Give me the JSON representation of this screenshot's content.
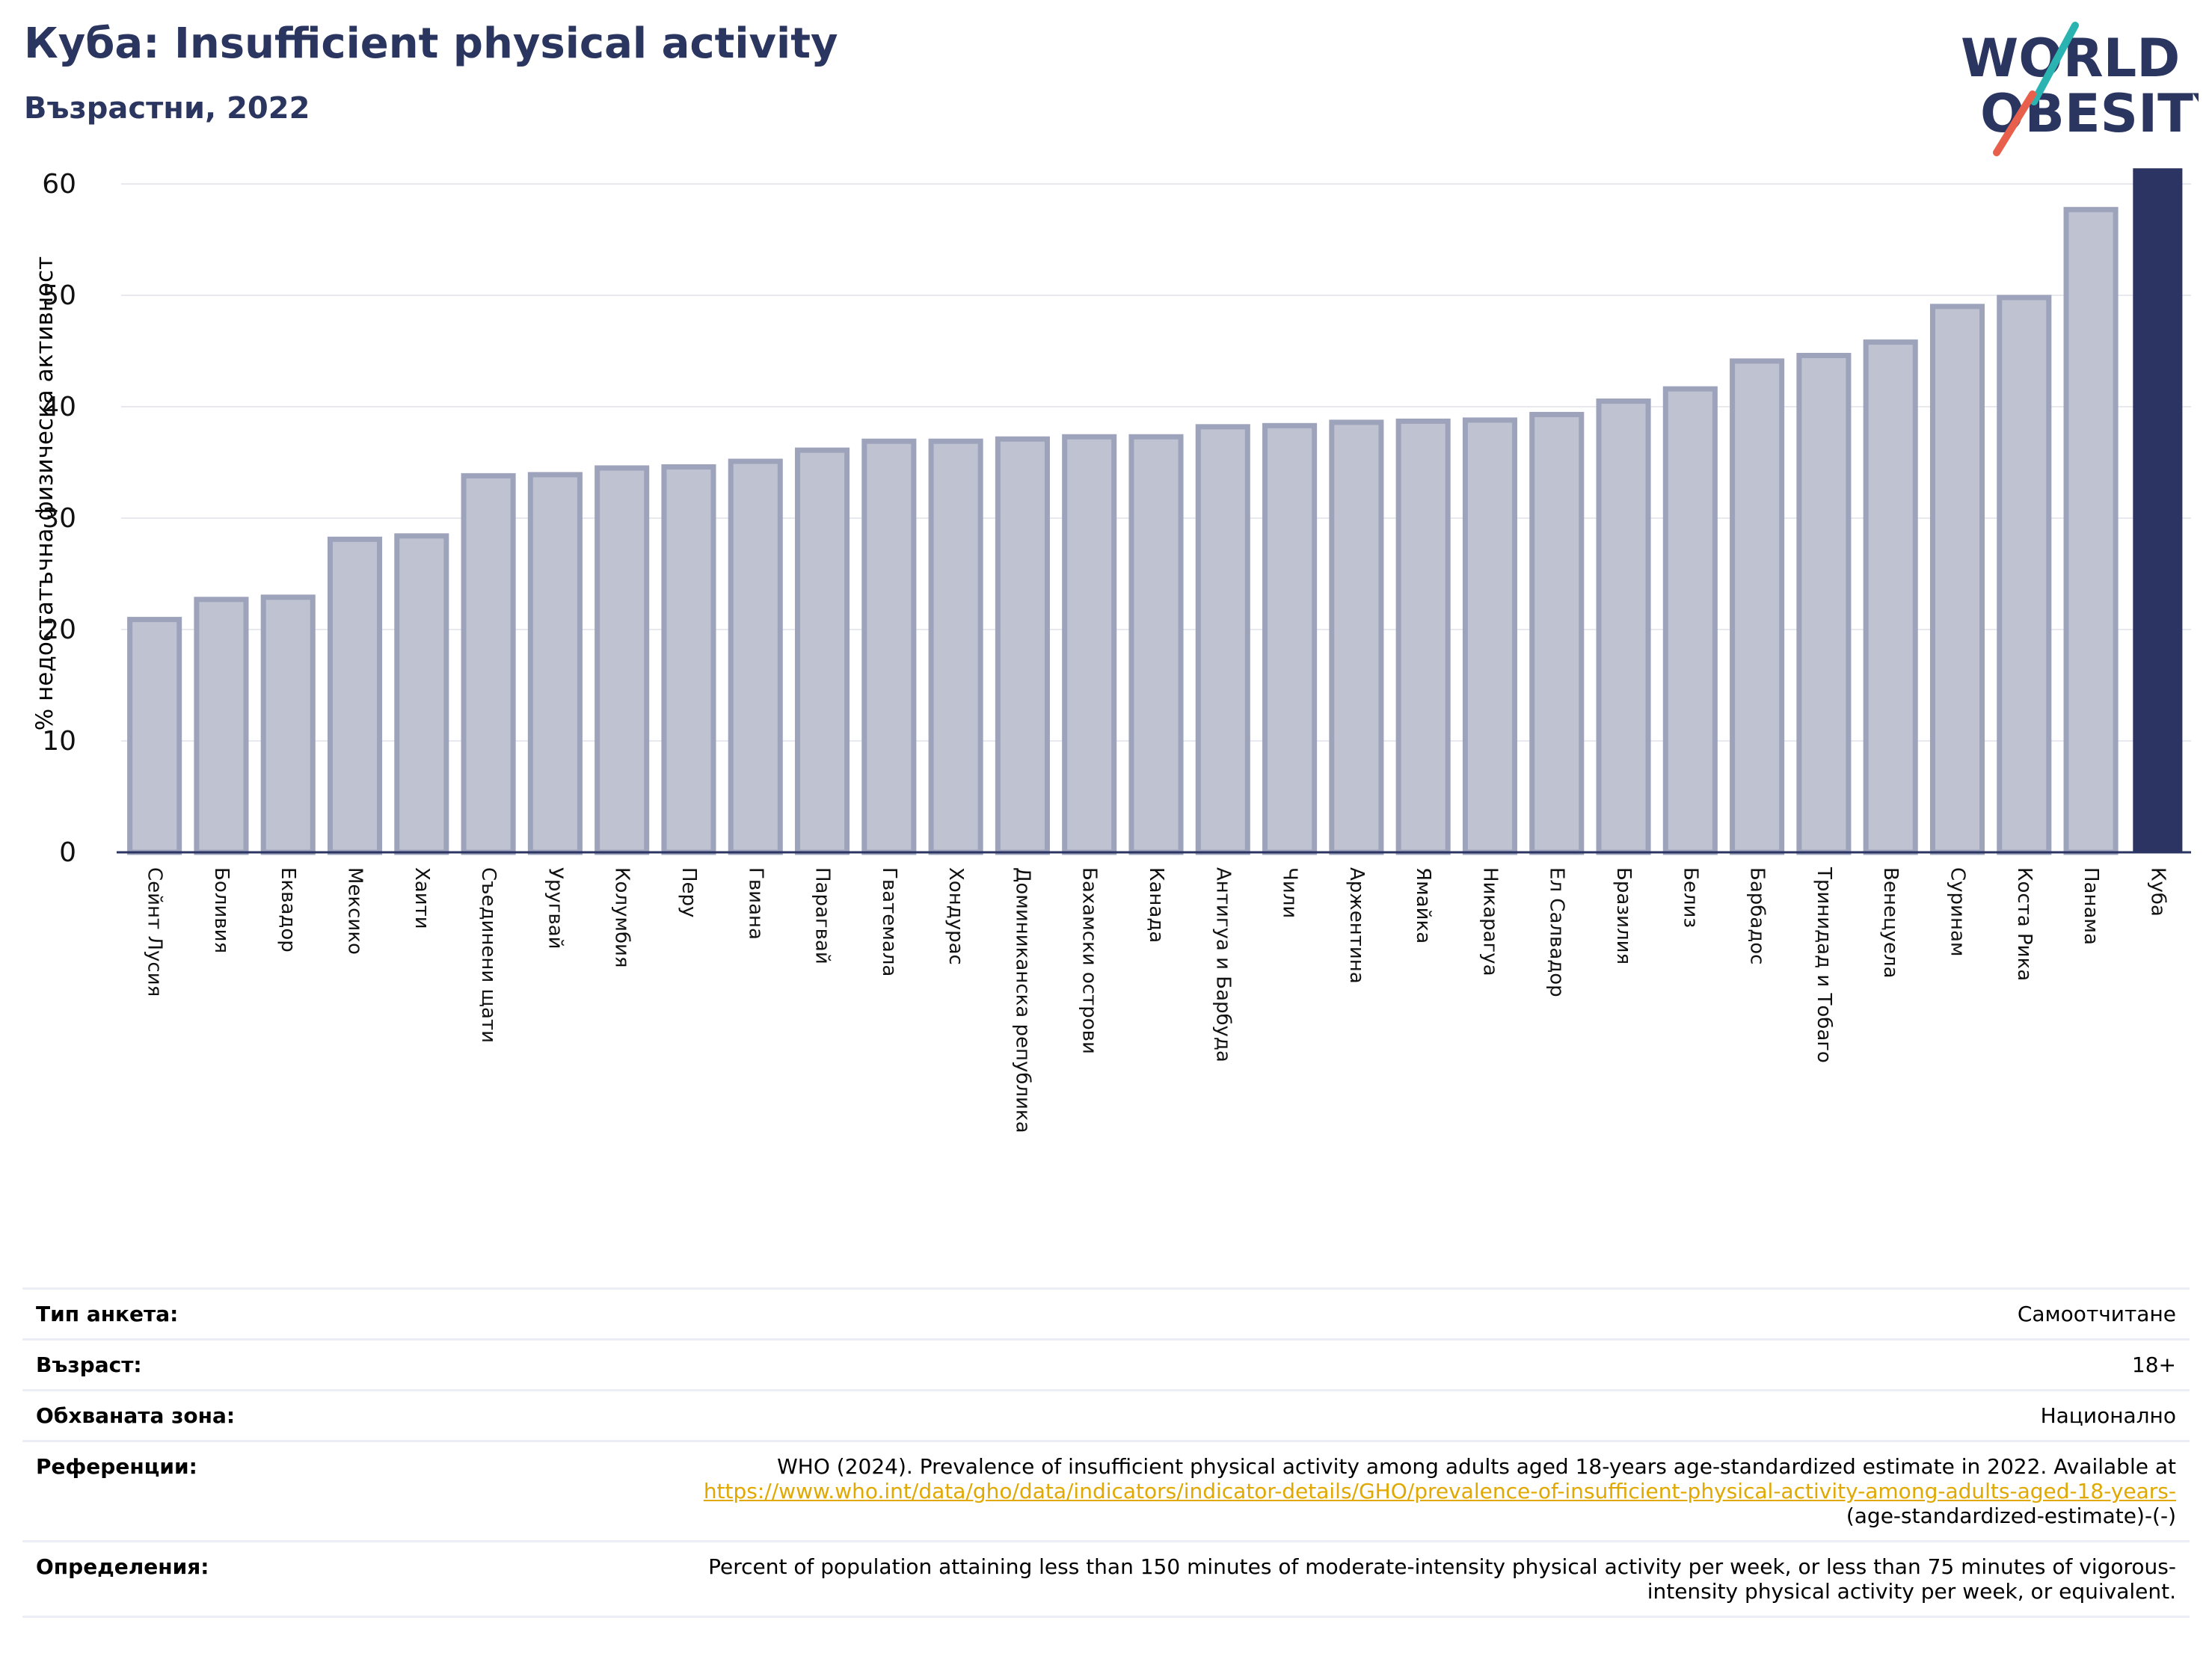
{
  "header": {
    "title": "Куба: Insufficient physical activity",
    "subtitle": "Възрастни, 2022"
  },
  "logo": {
    "line1": "WORLD",
    "line2": "OBESITY"
  },
  "colors": {
    "bar_fill": "#bfc2d0",
    "bar_stroke": "#9ea3bc",
    "highlight": "#2b3462",
    "title": "#2a3560",
    "link": "#e0a800"
  },
  "chart_data": {
    "type": "bar",
    "ylabel": "% недостатъчна физическа активност",
    "xlabel": "",
    "ylim": [
      0,
      62
    ],
    "yticks": [
      0,
      10,
      20,
      30,
      40,
      50,
      60
    ],
    "grid": true,
    "highlight": "Куба",
    "categories": [
      "Сейнт Лусия",
      "Боливия",
      "Еквадор",
      "Мексико",
      "Хаити",
      "Съединени щати",
      "Уругвай",
      "Колумбия",
      "Перу",
      "Гвиана",
      "Парагвай",
      "Гватемала",
      "Хондурас",
      "Доминиканска република",
      "Бахамски острови",
      "Канада",
      "Антигуа и Барбуда",
      "Чили",
      "Аржентина",
      "Ямайка",
      "Никарагуа",
      "Ел Салвадор",
      "Бразилия",
      "Белиз",
      "Барбадос",
      "Тринидад и Тобаго",
      "Венецуела",
      "Суринам",
      "Коста Рика",
      "Панама",
      "Куба"
    ],
    "values": [
      20.9,
      22.7,
      22.9,
      28.1,
      28.4,
      33.8,
      33.9,
      34.5,
      34.6,
      35.1,
      36.1,
      36.9,
      36.9,
      37.1,
      37.3,
      37.3,
      38.2,
      38.3,
      38.6,
      38.7,
      38.8,
      39.3,
      40.5,
      41.6,
      44.1,
      44.6,
      45.8,
      49.0,
      49.8,
      57.7,
      61.4
    ]
  },
  "info": {
    "survey_label": "Тип анкета:",
    "survey_value": "Самоотчитане",
    "age_label": "Възраст:",
    "age_value": "18+",
    "area_label": "Обхваната зона:",
    "area_value": "Национално",
    "ref_label": "Референции:",
    "ref_text": "WHO (2024). Prevalence of insufficient physical activity among adults aged 18-years age-standardized estimate in 2022. Available at",
    "ref_link": "https://www.who.int/data/gho/data/indicators/indicator-details/GHO/prevalence-of-insufficient-physical-activity-among-adults-aged-18-years-",
    "ref_tail": "(age-standardized-estimate)-(-)",
    "def_label": "Определения:",
    "def_line1": "Percent of population attaining less than 150 minutes of moderate-intensity physical activity per week, or less than 75 minutes of vigorous-",
    "def_line2": "intensity physical activity per week, or equivalent."
  }
}
